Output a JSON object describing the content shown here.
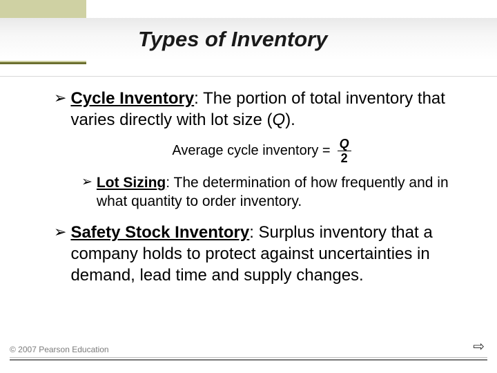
{
  "header": {
    "title": "Types of Inventory",
    "olive_color": "#cfd1a3",
    "accent_color": "#6b6f2f"
  },
  "bullets": {
    "b1_term": "Cycle Inventory",
    "b1_rest": ": The portion of total inventory that varies directly with lot size (",
    "b1_var": "Q",
    "b1_tail": ").",
    "formula_label": "Average cycle inventory =",
    "formula_num": "Q",
    "formula_den": "2",
    "sub_term": "Lot Sizing",
    "sub_rest": ": The determination of how frequently and in what quantity to order inventory.",
    "b2_term": "Safety Stock Inventory",
    "b2_rest": ": Surplus inventory that a company holds to protect against uncertainties in demand, lead time and supply changes."
  },
  "footer": {
    "copyright": "© 2007 Pearson Education",
    "next_glyph": "⇨"
  }
}
